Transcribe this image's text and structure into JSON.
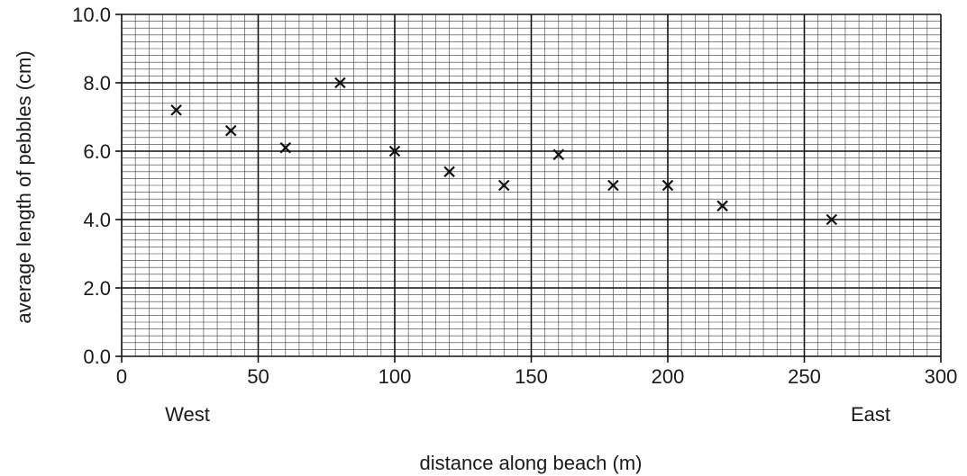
{
  "chart_data": {
    "type": "scatter",
    "xlabel": "distance along beach (m)",
    "ylabel": "average length of pebbles (cm)",
    "xlim": [
      0,
      300
    ],
    "ylim": [
      0,
      10
    ],
    "x_ticks": [
      "0",
      "50",
      "100",
      "150",
      "200",
      "250",
      "300"
    ],
    "y_ticks": [
      "0.0",
      "2.0",
      "4.0",
      "6.0",
      "8.0",
      "10.0"
    ],
    "direction_labels": {
      "west": "West",
      "east": "East"
    },
    "grid": "on",
    "marker": "x",
    "series": [
      {
        "points": [
          {
            "x": 20,
            "y": 7.2
          },
          {
            "x": 40,
            "y": 6.6
          },
          {
            "x": 60,
            "y": 6.1
          },
          {
            "x": 80,
            "y": 8.0
          },
          {
            "x": 100,
            "y": 6.0
          },
          {
            "x": 120,
            "y": 5.4
          },
          {
            "x": 140,
            "y": 5.0
          },
          {
            "x": 160,
            "y": 5.9
          },
          {
            "x": 180,
            "y": 5.0
          },
          {
            "x": 200,
            "y": 5.0
          },
          {
            "x": 220,
            "y": 4.4
          },
          {
            "x": 260,
            "y": 4.0
          }
        ]
      }
    ]
  }
}
